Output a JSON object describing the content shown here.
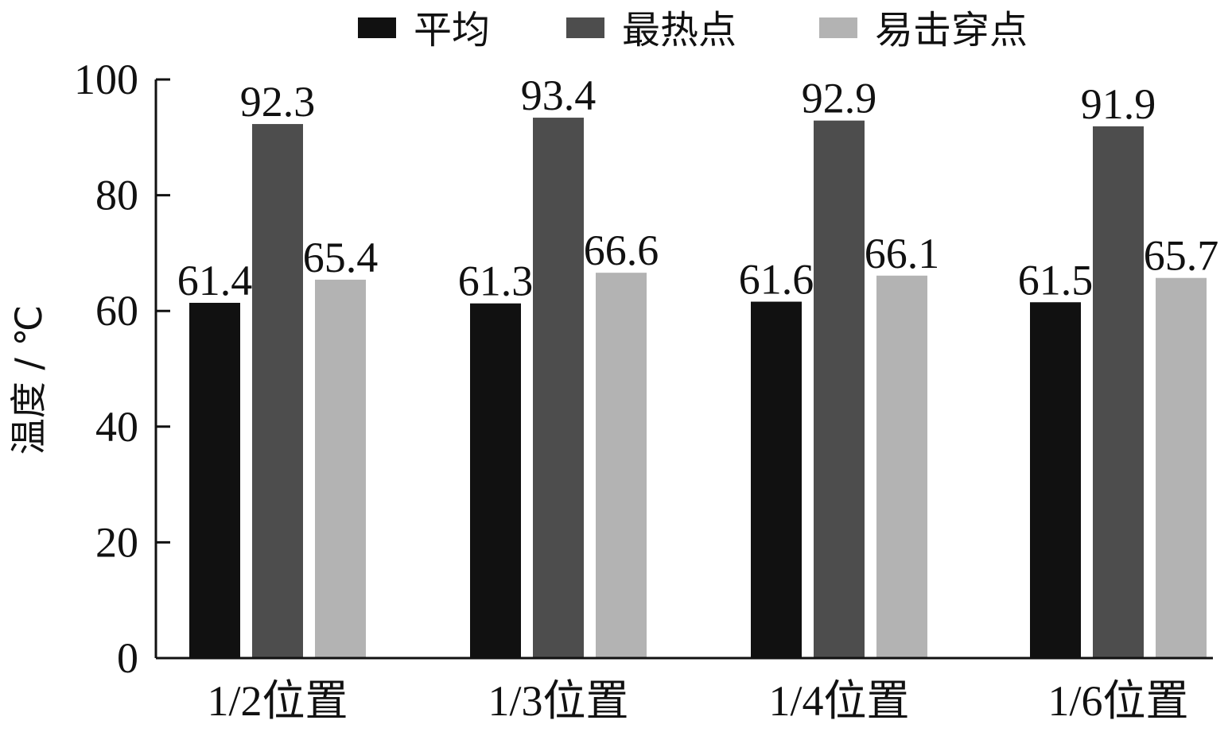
{
  "chart_data": {
    "type": "bar",
    "categories": [
      "1/2位置",
      "1/3位置",
      "1/4位置",
      "1/6位置"
    ],
    "series": [
      {
        "name": "平均",
        "values": [
          61.4,
          61.3,
          61.6,
          61.5
        ],
        "color": "#111111"
      },
      {
        "name": "最热点",
        "values": [
          92.3,
          93.4,
          92.9,
          91.9
        ],
        "color": "#4d4d4d"
      },
      {
        "name": "易击穿点",
        "values": [
          65.4,
          66.6,
          66.1,
          65.7
        ],
        "color": "#b3b3b3"
      }
    ],
    "data_labels": [
      [
        "61.4",
        "61.3",
        "61.6",
        "61.5"
      ],
      [
        "92.3",
        "93.4",
        "92.9",
        "91.9"
      ],
      [
        "65.4",
        "66.6",
        "66.1",
        "65.7"
      ]
    ],
    "title": "",
    "xlabel": "",
    "ylabel": "温度 / ℃",
    "ylim": [
      0,
      100
    ],
    "yticks": [
      "0",
      "20",
      "40",
      "60",
      "80",
      "100"
    ],
    "grid": false,
    "legend_position": "top"
  }
}
